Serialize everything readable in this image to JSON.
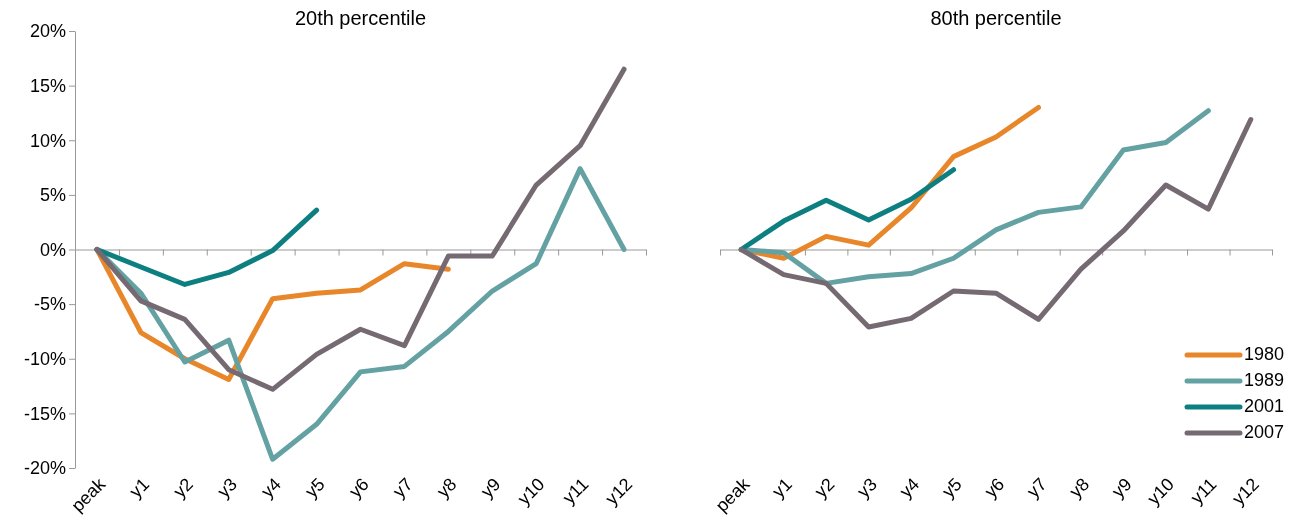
{
  "chart_data": [
    {
      "type": "line",
      "title": "20th percentile",
      "categories": [
        "peak",
        "y1",
        "y2",
        "y3",
        "y4",
        "y5",
        "y6",
        "y7",
        "y8",
        "y9",
        "y10",
        "y11",
        "y12"
      ],
      "ylim": [
        -20,
        20
      ],
      "yticks": [
        {
          "value": -20,
          "label": "-20%"
        },
        {
          "value": -15,
          "label": "-15%"
        },
        {
          "value": -10,
          "label": "-10%"
        },
        {
          "value": -5,
          "label": "-5%"
        },
        {
          "value": 0,
          "label": "0%"
        },
        {
          "value": 5,
          "label": "5%"
        },
        {
          "value": 10,
          "label": "10%"
        },
        {
          "value": 15,
          "label": "15%"
        },
        {
          "value": 20,
          "label": "20%"
        }
      ],
      "legend": false,
      "marker": "none",
      "line_style": "solid",
      "series": [
        {
          "color": "#e8862a",
          "values": [
            0,
            -7.6,
            -10,
            -11.9,
            -4.5,
            -4.0,
            -3.7,
            -1.3,
            -1.8,
            null,
            null,
            null,
            null
          ]
        },
        {
          "color": "#64a1a3",
          "values": [
            0,
            -4.0,
            -10.3,
            -8.3,
            -19.2,
            -16,
            -11.2,
            -10.7,
            -7.5,
            -3.8,
            -1.3,
            7.4,
            0
          ]
        },
        {
          "color": "#0d7f80",
          "values": [
            0,
            -1.6,
            -3.2,
            -2.1,
            -0.1,
            3.6,
            null,
            null,
            null,
            null,
            null,
            null,
            null
          ]
        },
        {
          "color": "#756a72",
          "values": [
            0,
            -4.7,
            -6.4,
            -11,
            -12.8,
            -9.6,
            -7.3,
            -8.8,
            -0.6,
            -0.6,
            5.9,
            9.5,
            16.5
          ]
        }
      ]
    },
    {
      "type": "line",
      "title": "80th percentile",
      "categories": [
        "peak",
        "y1",
        "y2",
        "y3",
        "y4",
        "y5",
        "y6",
        "y7",
        "y8",
        "y9",
        "y10",
        "y11",
        "y12"
      ],
      "ylim": [
        -20,
        20
      ],
      "tick_labels": "x",
      "legend": "bottom right",
      "marker": "none",
      "line_style": "solid",
      "series": [
        {
          "name": "1980",
          "color": "#e8862a",
          "values": [
            0,
            -0.8,
            1.2,
            0.4,
            3.8,
            8.5,
            10.3,
            13.0,
            null,
            null,
            null,
            null,
            null
          ]
        },
        {
          "name": "1989",
          "color": "#64a1a3",
          "values": [
            0,
            -0.3,
            -3.1,
            -2.5,
            -2.2,
            -0.8,
            1.8,
            3.4,
            3.9,
            9.1,
            9.8,
            12.7,
            null
          ]
        },
        {
          "name": "2001",
          "color": "#0d7f80",
          "values": [
            0,
            2.6,
            4.5,
            2.7,
            4.6,
            7.3,
            null,
            null,
            null,
            null,
            null,
            null,
            null
          ]
        },
        {
          "name": "2007",
          "color": "#756a72",
          "values": [
            0,
            -2.3,
            -3.1,
            -7.1,
            -6.3,
            -3.8,
            -4.0,
            -6.4,
            -1.8,
            1.7,
            5.9,
            3.7,
            11.9
          ]
        }
      ]
    }
  ]
}
